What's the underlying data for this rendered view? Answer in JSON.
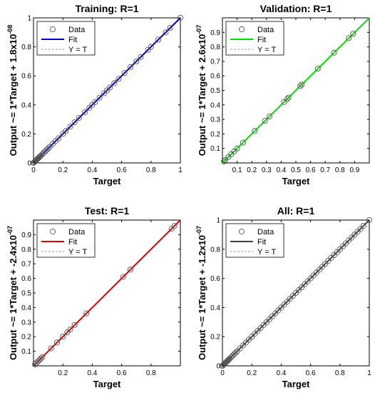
{
  "colors": {
    "axes": "#000000",
    "data_marker": "#555555",
    "ref_line": "#9a9a9a",
    "fit_training": "#0000c8",
    "fit_validation": "#00e000",
    "fit_test": "#e00000",
    "fit_all": "#404040"
  },
  "chart_data": [
    {
      "type": "scatter",
      "title": "Training: R=1",
      "xlabel": "Target",
      "ylabel_main": "Output ~= 1*Target + 1.8x10",
      "ylabel_exp": "-08",
      "xlim": [
        0,
        1
      ],
      "ylim": [
        0,
        1
      ],
      "xticks": [
        "0",
        "0.2",
        "0.4",
        "0.6",
        "0.8",
        "1"
      ],
      "yticks": [
        "0",
        "0.2",
        "0.4",
        "0.6",
        "0.8",
        "1"
      ],
      "grid": false,
      "legend_position": "top-left",
      "legend": [
        "Data",
        "Fit",
        "Y = T"
      ],
      "fit_color_key": "fit_training",
      "fit": {
        "slope": 1,
        "intercept": 0
      },
      "x": [
        0.0,
        0.005,
        0.01,
        0.015,
        0.02,
        0.025,
        0.03,
        0.035,
        0.04,
        0.045,
        0.05,
        0.06,
        0.07,
        0.08,
        0.09,
        0.1,
        0.11,
        0.13,
        0.15,
        0.17,
        0.2,
        0.22,
        0.25,
        0.28,
        0.31,
        0.35,
        0.38,
        0.4,
        0.42,
        0.45,
        0.48,
        0.5,
        0.52,
        0.55,
        0.58,
        0.62,
        0.66,
        0.7,
        0.73,
        0.78,
        0.8,
        0.85,
        0.9,
        0.93,
        1.0
      ],
      "y": [
        0.0,
        0.005,
        0.01,
        0.015,
        0.02,
        0.025,
        0.03,
        0.035,
        0.04,
        0.045,
        0.05,
        0.06,
        0.07,
        0.08,
        0.09,
        0.1,
        0.11,
        0.13,
        0.15,
        0.17,
        0.2,
        0.22,
        0.25,
        0.28,
        0.31,
        0.35,
        0.38,
        0.4,
        0.42,
        0.45,
        0.48,
        0.5,
        0.52,
        0.55,
        0.58,
        0.62,
        0.66,
        0.7,
        0.73,
        0.78,
        0.8,
        0.85,
        0.9,
        0.93,
        1.0
      ]
    },
    {
      "type": "scatter",
      "title": "Validation: R=1",
      "xlabel": "Target",
      "ylabel_main": "Output ~= 1*Target + 2.6x10",
      "ylabel_exp": "-07",
      "xlim": [
        0,
        1
      ],
      "ylim": [
        0,
        1
      ],
      "xticks": [
        "0.1",
        "0.2",
        "0.3",
        "0.4",
        "0.5",
        "0.6",
        "0.7",
        "0.8",
        "0.9"
      ],
      "yticks": [
        "0.1",
        "0.2",
        "0.3",
        "0.4",
        "0.5",
        "0.6",
        "0.7",
        "0.8",
        "0.9"
      ],
      "grid": false,
      "legend_position": "top-left",
      "legend": [
        "Data",
        "Fit",
        "Y = T"
      ],
      "fit_color_key": "fit_validation",
      "fit": {
        "slope": 1,
        "intercept": 0
      },
      "x": [
        0.01,
        0.02,
        0.04,
        0.06,
        0.08,
        0.1,
        0.14,
        0.22,
        0.29,
        0.32,
        0.42,
        0.44,
        0.45,
        0.53,
        0.54,
        0.65,
        0.76,
        0.86,
        0.89
      ],
      "y": [
        0.01,
        0.02,
        0.04,
        0.06,
        0.08,
        0.1,
        0.14,
        0.22,
        0.29,
        0.32,
        0.42,
        0.44,
        0.45,
        0.53,
        0.54,
        0.65,
        0.76,
        0.86,
        0.89
      ]
    },
    {
      "type": "scatter",
      "title": "Test: R=1",
      "xlabel": "Target",
      "ylabel_main": "Output ~= 1*Target + -2.4x10",
      "ylabel_exp": "-07",
      "xlim": [
        0,
        1
      ],
      "ylim": [
        0,
        1
      ],
      "xticks": [
        "0.2",
        "0.4",
        "0.6",
        "0.8"
      ],
      "yticks": [
        "0.1",
        "0.2",
        "0.3",
        "0.4",
        "0.5",
        "0.6",
        "0.7",
        "0.8",
        "0.9"
      ],
      "grid": false,
      "legend_position": "top-left",
      "legend": [
        "Data",
        "Fit",
        "Y = T"
      ],
      "fit_color_key": "fit_test",
      "fit": {
        "slope": 1,
        "intercept": 0
      },
      "x": [
        0.01,
        0.02,
        0.03,
        0.04,
        0.05,
        0.06,
        0.12,
        0.16,
        0.2,
        0.23,
        0.25,
        0.28,
        0.36,
        0.61,
        0.66,
        0.94,
        0.96
      ],
      "y": [
        0.01,
        0.02,
        0.03,
        0.04,
        0.05,
        0.06,
        0.12,
        0.16,
        0.2,
        0.23,
        0.25,
        0.28,
        0.36,
        0.61,
        0.66,
        0.94,
        0.96
      ]
    },
    {
      "type": "scatter",
      "title": "All: R=1",
      "xlabel": "Target",
      "ylabel_main": "Output ~= 1*Target + -1.2x10",
      "ylabel_exp": "-07",
      "xlim": [
        0,
        1
      ],
      "ylim": [
        0,
        1
      ],
      "xticks": [
        "0",
        "0.2",
        "0.4",
        "0.6",
        "0.8",
        "1"
      ],
      "yticks": [
        "0",
        "0.2",
        "0.4",
        "0.6",
        "0.8",
        "1"
      ],
      "grid": false,
      "legend_position": "top-left",
      "legend": [
        "Data",
        "Fit",
        "Y = T"
      ],
      "fit_color_key": "fit_all",
      "fit": {
        "slope": 1,
        "intercept": 0
      },
      "x": [
        0.0,
        0.005,
        0.01,
        0.015,
        0.02,
        0.025,
        0.03,
        0.035,
        0.04,
        0.045,
        0.05,
        0.06,
        0.07,
        0.08,
        0.09,
        0.1,
        0.12,
        0.14,
        0.16,
        0.18,
        0.2,
        0.22,
        0.24,
        0.26,
        0.28,
        0.3,
        0.32,
        0.34,
        0.36,
        0.38,
        0.4,
        0.42,
        0.44,
        0.46,
        0.48,
        0.5,
        0.52,
        0.54,
        0.56,
        0.58,
        0.6,
        0.62,
        0.64,
        0.66,
        0.68,
        0.7,
        0.72,
        0.74,
        0.76,
        0.78,
        0.8,
        0.82,
        0.84,
        0.86,
        0.88,
        0.9,
        0.92,
        0.94,
        0.96,
        1.0
      ],
      "y": [
        0.0,
        0.005,
        0.01,
        0.015,
        0.02,
        0.025,
        0.03,
        0.035,
        0.04,
        0.045,
        0.05,
        0.06,
        0.07,
        0.08,
        0.09,
        0.1,
        0.12,
        0.14,
        0.16,
        0.18,
        0.2,
        0.22,
        0.24,
        0.26,
        0.28,
        0.3,
        0.32,
        0.34,
        0.36,
        0.38,
        0.4,
        0.42,
        0.44,
        0.46,
        0.48,
        0.5,
        0.52,
        0.54,
        0.56,
        0.58,
        0.6,
        0.62,
        0.64,
        0.66,
        0.68,
        0.7,
        0.72,
        0.74,
        0.76,
        0.78,
        0.8,
        0.82,
        0.84,
        0.86,
        0.88,
        0.9,
        0.92,
        0.94,
        0.96,
        1.0
      ]
    }
  ]
}
